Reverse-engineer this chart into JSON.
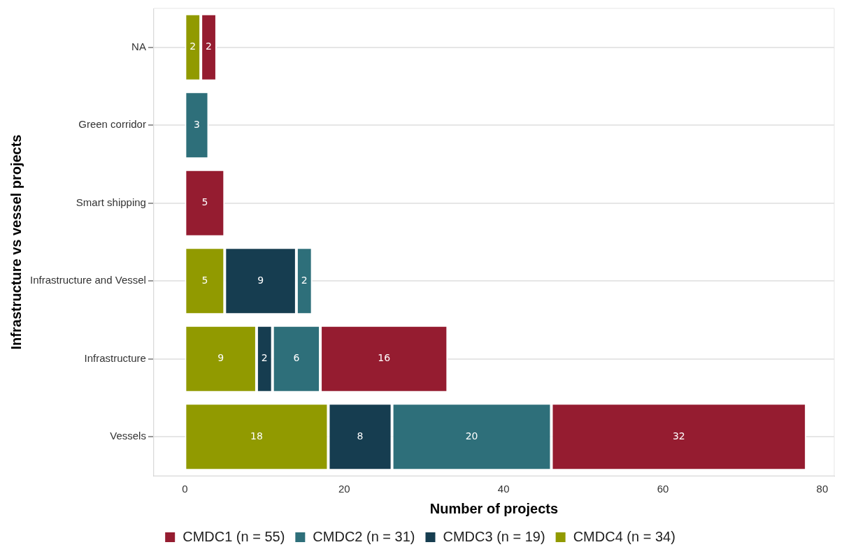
{
  "chart_data": {
    "type": "bar",
    "orientation": "horizontal",
    "stacked": true,
    "xlabel": "Number of projects",
    "ylabel": "Infrastructure vs vessel projects",
    "categories": [
      "NA",
      "Green corridor",
      "Smart shipping",
      "Infrastructure and Vessel",
      "Infrastructure",
      "Vessels"
    ],
    "series": [
      {
        "name": "CMDC4 (n = 34)",
        "color": "#919a00",
        "values": [
          2,
          null,
          null,
          5,
          9,
          18
        ]
      },
      {
        "name": "CMDC3 (n = 19)",
        "color": "#163d50",
        "values": [
          null,
          null,
          null,
          9,
          2,
          8
        ]
      },
      {
        "name": "CMDC2 (n = 31)",
        "color": "#2e6f7a",
        "values": [
          null,
          3,
          null,
          2,
          6,
          20
        ]
      },
      {
        "name": "CMDC1 (n = 55)",
        "color": "#951c30",
        "values": [
          2,
          null,
          5,
          null,
          16,
          32
        ]
      }
    ],
    "xlim": [
      -3.9,
      81.5
    ],
    "xticks": [
      0,
      20,
      40,
      60,
      80
    ],
    "grid": "y",
    "legend": "bottom",
    "data_labels": true
  }
}
